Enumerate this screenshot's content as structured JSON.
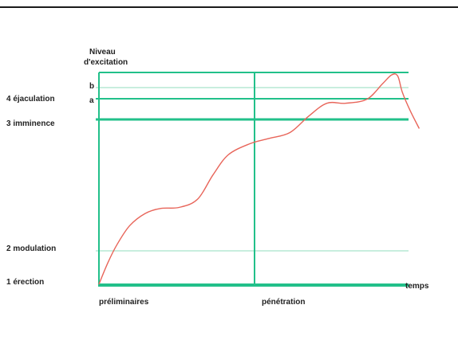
{
  "colors": {
    "top_rule": "#1a1a1a",
    "axis": "#22c08a",
    "grid_thin": "#b6e8d4",
    "curve": "#e8655a",
    "text": "#222222"
  },
  "chart_data": {
    "type": "line",
    "title": "",
    "ylabel": "Niveau d'excitation",
    "ylabel_lines": [
      "Niveau",
      "d'excitation"
    ],
    "xlabel": "temps",
    "phases": [
      "préliminaires",
      "pénétration"
    ],
    "y_levels": [
      {
        "label": "1 érection",
        "value": 0
      },
      {
        "label": "2 modulation",
        "value": 1.65
      },
      {
        "label": "3 imminence",
        "value": 8.45
      },
      {
        "label": "a",
        "value": 9.3
      },
      {
        "label": "b",
        "value": 10.0
      },
      {
        "label": "4 éjaculation",
        "value": 9.65,
        "marker_only": true
      }
    ],
    "level_label_left": [
      "1 érection",
      "2 modulation",
      "3 imminence",
      "4 éjaculation"
    ],
    "level_label_inner": [
      "a",
      "b"
    ],
    "xlim": [
      0,
      10
    ],
    "ylim": [
      0,
      10.6
    ],
    "phase_divider_x": 4.9,
    "series": [
      {
        "x": [
          0,
          0.3,
          0.6,
          1.0,
          1.5,
          2.0,
          2.6,
          3.2,
          3.7,
          4.2,
          4.9,
          5.5,
          6.2,
          6.8,
          7.4,
          8.0,
          8.7,
          9.2,
          9.5,
          9.7,
          9.85,
          10.1,
          10.4
        ],
        "y": [
          0,
          1.1,
          2.0,
          2.9,
          3.5,
          3.75,
          3.8,
          4.2,
          5.4,
          6.4,
          6.95,
          7.2,
          7.5,
          8.3,
          8.95,
          8.95,
          9.15,
          9.9,
          10.35,
          10.3,
          9.5,
          8.6,
          7.7
        ]
      }
    ]
  }
}
